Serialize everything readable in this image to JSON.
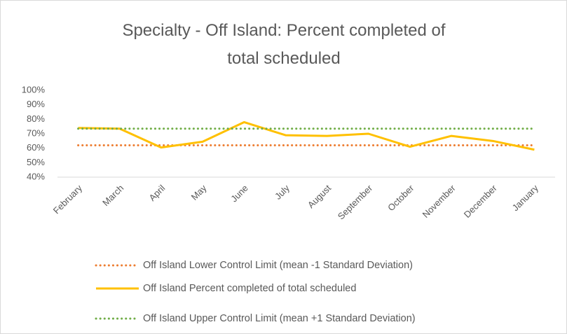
{
  "chart_data": {
    "type": "line",
    "title": "Specialty - Off Island: Percent completed of total scheduled",
    "categories": [
      "February",
      "March",
      "April",
      "May",
      "June",
      "July",
      "August",
      "September",
      "October",
      "November",
      "December",
      "January"
    ],
    "series": [
      {
        "name": "Off Island Lower Control Limit (mean -1 Standard Deviation)",
        "color": "#ed7d31",
        "style": "dotted",
        "values": [
          62,
          62,
          62,
          62,
          62,
          62,
          62,
          62,
          62,
          62,
          62,
          62
        ]
      },
      {
        "name": "Off Island Percent completed of total scheduled",
        "color": "#ffc000",
        "style": "solid",
        "values": [
          74,
          73.5,
          60.5,
          64.5,
          78,
          69,
          68.5,
          70,
          61,
          68.5,
          65,
          59
        ]
      },
      {
        "name": "Off Island Upper Control Limit (mean +1 Standard Deviation)",
        "color": "#70ad47",
        "style": "dotted",
        "values": [
          73.5,
          73.5,
          73.5,
          73.5,
          73.5,
          73.5,
          73.5,
          73.5,
          73.5,
          73.5,
          73.5,
          73.5
        ]
      }
    ],
    "ylim": [
      40,
      100
    ],
    "yticks": [
      {
        "value": 40,
        "label": "40%"
      },
      {
        "value": 50,
        "label": "50%"
      },
      {
        "value": 60,
        "label": "60%"
      },
      {
        "value": 70,
        "label": "70%"
      },
      {
        "value": 80,
        "label": "80%"
      },
      {
        "value": 90,
        "label": "90%"
      },
      {
        "value": 100,
        "label": "100%"
      }
    ],
    "grid": false,
    "legend": "bottom"
  }
}
